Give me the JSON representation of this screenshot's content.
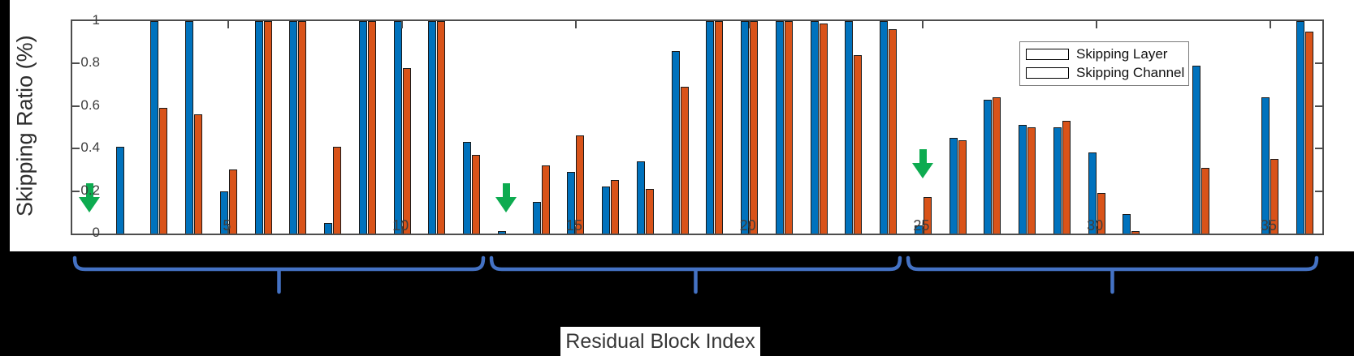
{
  "chart_data": {
    "type": "bar",
    "title": "",
    "xlabel": "Residual Block Index",
    "ylabel": "Skipping Ratio (%)",
    "ylim": [
      0,
      1
    ],
    "ytick_values": [
      0,
      0.2,
      0.4,
      0.6,
      0.8,
      1
    ],
    "xtick_values": [
      5,
      10,
      15,
      20,
      25,
      30,
      35
    ],
    "grid": false,
    "legend_position": "inside-upper-right",
    "categories": [
      1,
      2,
      3,
      4,
      5,
      6,
      7,
      8,
      9,
      10,
      11,
      12,
      13,
      14,
      15,
      16,
      17,
      18,
      19,
      20,
      21,
      22,
      23,
      24,
      25,
      26,
      27,
      28,
      29,
      30,
      31,
      32,
      33,
      34,
      35,
      36
    ],
    "series": [
      {
        "name": "Skipping Layer",
        "color": "#0072BD",
        "values": [
          0,
          0.41,
          1.0,
          1.0,
          0.2,
          1.0,
          1.0,
          0.05,
          1.0,
          1.0,
          1.0,
          0.43,
          0.01,
          0.15,
          0.29,
          0.22,
          0.34,
          0.86,
          1.0,
          1.0,
          1.0,
          1.0,
          1.0,
          1.0,
          0.04,
          0.45,
          0.63,
          0.51,
          0.5,
          0.38,
          0.09,
          0,
          0.79,
          0,
          0.64,
          1.0
        ]
      },
      {
        "name": "Skipping Channel",
        "color": "#D95319",
        "values": [
          0,
          0,
          0.59,
          0.56,
          0.3,
          1.0,
          1.0,
          0.41,
          1.0,
          0.78,
          1.0,
          0.37,
          0,
          0.32,
          0.46,
          0.25,
          0.21,
          0.69,
          1.0,
          1.0,
          1.0,
          0.99,
          0.84,
          0.96,
          0.17,
          0.44,
          0.64,
          0.5,
          0.53,
          0.19,
          0.01,
          0,
          0.31,
          0,
          0.35,
          0.95
        ]
      }
    ],
    "annotations": {
      "green_arrows": [
        {
          "block": 1,
          "tip_value": 0.1
        },
        {
          "block": 13,
          "tip_value": 0.1
        },
        {
          "block": 25,
          "tip_value": 0.26
        }
      ],
      "stage_braces": [
        {
          "from_block": 1,
          "to_block": 12
        },
        {
          "from_block": 13,
          "to_block": 24
        },
        {
          "from_block": 25,
          "to_block": 36
        }
      ]
    }
  },
  "legend": {
    "items": [
      {
        "label": "Skipping Layer",
        "color": "#0072BD"
      },
      {
        "label": "Skipping Channel",
        "color": "#D95319"
      }
    ]
  },
  "colors": {
    "background": "#000000",
    "chart_background": "#ffffff",
    "axis": "#4d4d4d",
    "bar_edge": "#1a1a1a",
    "brace_blue": "#4472C4",
    "arrow_green": "#0DAB50",
    "tick_label": "#3d3d3d"
  }
}
